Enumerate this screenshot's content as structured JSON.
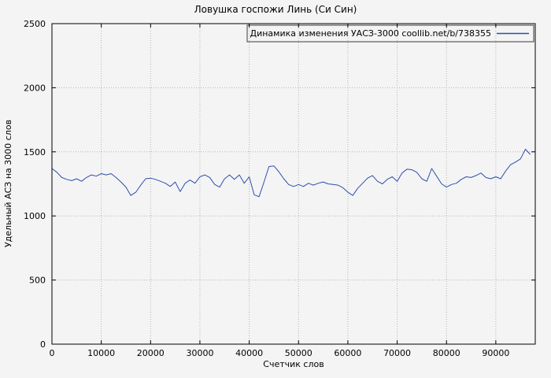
{
  "chart_data": {
    "type": "line",
    "title": "Ловушка госпожи Линь (Си Син)",
    "xlabel": "Счетчик слов",
    "ylabel": "Удельный АСЗ на 3000 слов",
    "legend": "Динамика изменения УАСЗ-3000 coollib.net/b/738355",
    "xlim": [
      0,
      98000
    ],
    "ylim": [
      0,
      2500
    ],
    "xticks": [
      0,
      10000,
      20000,
      30000,
      40000,
      50000,
      60000,
      70000,
      80000,
      90000
    ],
    "yticks": [
      0,
      500,
      1000,
      1500,
      2000,
      2500
    ],
    "grid": true,
    "grid_style": "dotted",
    "legend_position": "top-right-inside",
    "line_color": "#2b4fad",
    "series": [
      {
        "name": "Динамика изменения УАСЗ-3000 coollib.net/b/738355",
        "x": [
          0,
          1000,
          2000,
          3000,
          4000,
          5000,
          6000,
          7000,
          8000,
          9000,
          10000,
          11000,
          12000,
          13000,
          14000,
          15000,
          16000,
          17000,
          18000,
          19000,
          20000,
          21000,
          22000,
          23000,
          24000,
          25000,
          26000,
          27000,
          28000,
          29000,
          30000,
          31000,
          32000,
          33000,
          34000,
          35000,
          36000,
          37000,
          38000,
          39000,
          40000,
          41000,
          42000,
          43000,
          44000,
          45000,
          46000,
          47000,
          48000,
          49000,
          50000,
          51000,
          52000,
          53000,
          54000,
          55000,
          56000,
          57000,
          58000,
          59000,
          60000,
          61000,
          62000,
          63000,
          64000,
          65000,
          66000,
          67000,
          68000,
          69000,
          70000,
          71000,
          72000,
          73000,
          74000,
          75000,
          76000,
          77000,
          78000,
          79000,
          80000,
          81000,
          82000,
          83000,
          84000,
          85000,
          86000,
          87000,
          88000,
          89000,
          90000,
          91000,
          92000,
          93000,
          94000,
          95000,
          96000,
          97000
        ],
        "y": [
          1370,
          1340,
          1300,
          1285,
          1275,
          1290,
          1270,
          1300,
          1320,
          1310,
          1330,
          1320,
          1330,
          1300,
          1265,
          1225,
          1160,
          1185,
          1240,
          1290,
          1295,
          1285,
          1270,
          1255,
          1230,
          1265,
          1190,
          1255,
          1280,
          1255,
          1305,
          1320,
          1300,
          1245,
          1225,
          1290,
          1320,
          1285,
          1320,
          1255,
          1305,
          1165,
          1150,
          1265,
          1385,
          1390,
          1345,
          1290,
          1245,
          1230,
          1245,
          1230,
          1255,
          1240,
          1255,
          1265,
          1250,
          1245,
          1240,
          1220,
          1185,
          1160,
          1215,
          1255,
          1295,
          1315,
          1270,
          1250,
          1285,
          1305,
          1270,
          1335,
          1365,
          1360,
          1340,
          1290,
          1270,
          1370,
          1310,
          1250,
          1225,
          1245,
          1255,
          1285,
          1305,
          1300,
          1315,
          1335,
          1300,
          1290,
          1305,
          1290,
          1350,
          1400,
          1420,
          1445,
          1520,
          1480
        ]
      }
    ]
  }
}
